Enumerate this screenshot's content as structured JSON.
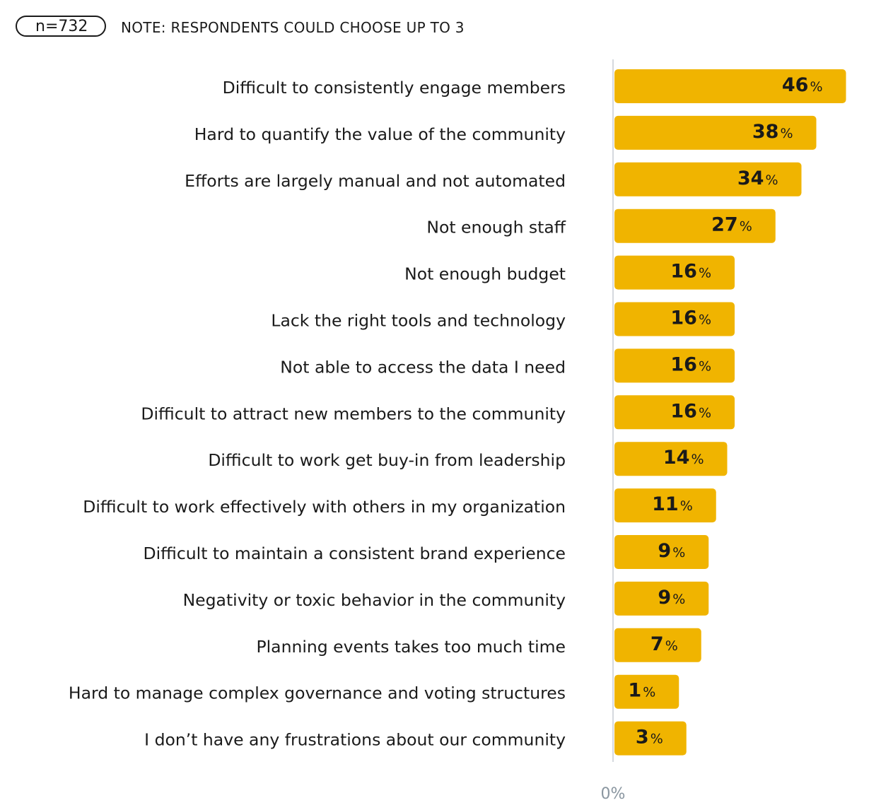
{
  "header": {
    "sample_size": "n=732",
    "note": "NOTE: RESPONDENTS COULD CHOOSE UP TO 3"
  },
  "chart_data": {
    "type": "bar",
    "orientation": "horizontal",
    "title": "",
    "xlabel": "",
    "ylabel": "",
    "x_tick_labels": [
      "0%"
    ],
    "xlim": [
      0,
      50
    ],
    "value_suffix": "%",
    "bar_color": "#f0b400",
    "categories": [
      "Difficult to consistently engage members",
      "Hard to quantify the value of the community",
      "Efforts are largely manual and not automated",
      "Not enough staff",
      "Not enough budget",
      "Lack the right tools and technology",
      "Not able to access the data I need",
      "Difficult to attract new members to the community",
      "Difficult to work get buy-in from leadership",
      "Difficult to work effectively with others in my organization",
      "Difficult to maintain a consistent brand experience",
      "Negativity or toxic behavior in the community",
      "Planning events takes too much time",
      "Hard to manage complex governance and voting structures",
      "I don’t have any frustrations about our community"
    ],
    "values": [
      46,
      38,
      34,
      27,
      16,
      16,
      16,
      16,
      14,
      11,
      9,
      9,
      7,
      1,
      3
    ]
  }
}
